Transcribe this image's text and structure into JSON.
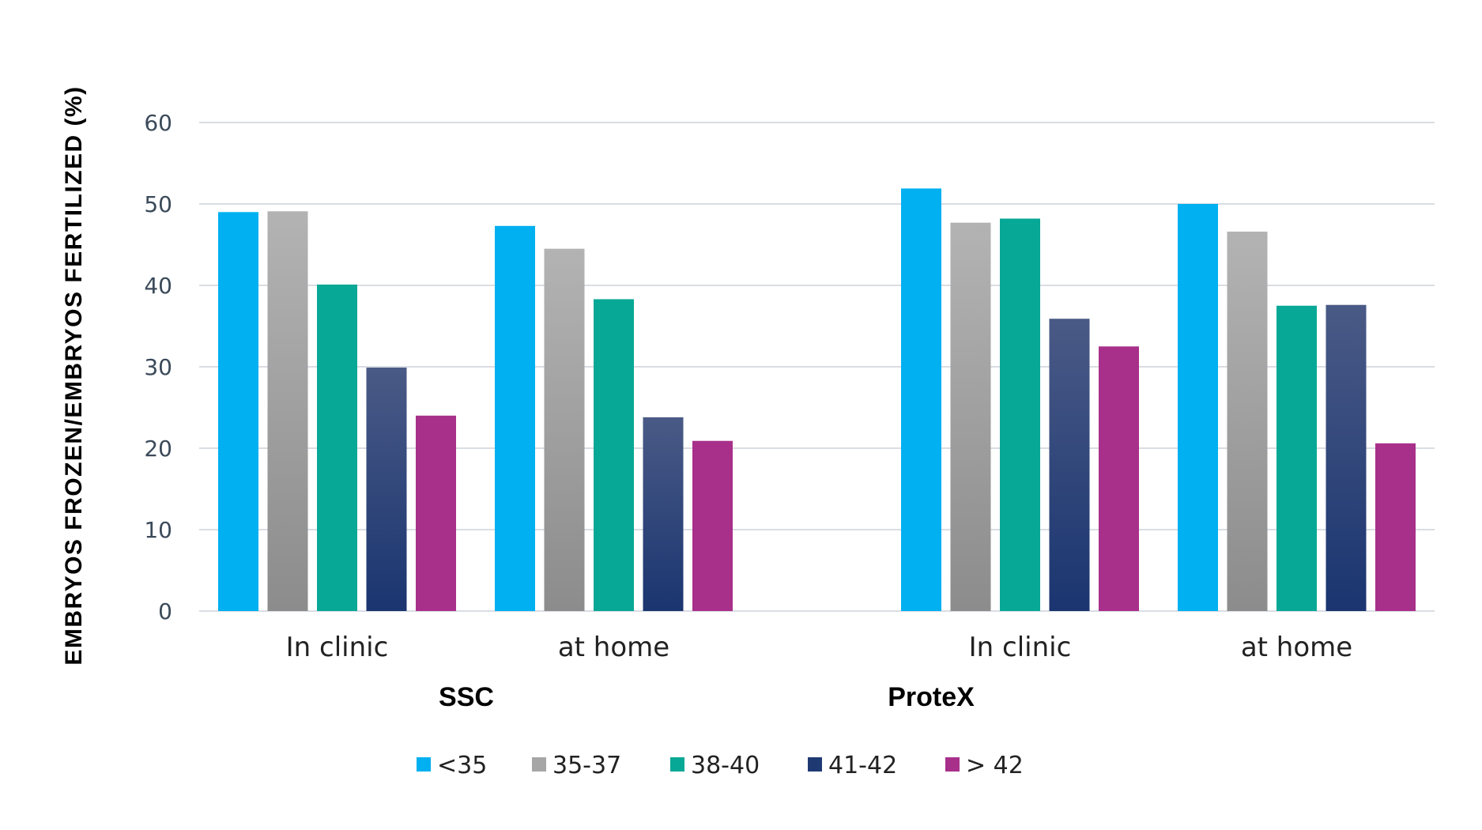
{
  "chart_data": {
    "type": "bar",
    "ylabel": "EMBRYOS FROZEN/EMBRYOS FERTILIZED (%)",
    "ylim": [
      0,
      60
    ],
    "yticks": [
      "0",
      "10",
      "20",
      "30",
      "40",
      "50",
      "60"
    ],
    "grid": true,
    "legend_position": "bottom",
    "groups": [
      {
        "name": "SSC",
        "categories": [
          "In clinic",
          "at home"
        ]
      },
      {
        "name": "ProteX",
        "categories": [
          "In clinic",
          "at home"
        ]
      }
    ],
    "categories": [
      "In clinic",
      "at home",
      "In clinic",
      "at home"
    ],
    "series": [
      {
        "name": "<35",
        "color": "#00b0f0",
        "values": [
          49.0,
          47.3,
          51.9,
          50.0
        ]
      },
      {
        "name": "35-37",
        "color": "#a6a6a6",
        "values": [
          49.1,
          44.5,
          47.7,
          46.6
        ]
      },
      {
        "name": "38-40",
        "color": "#08a896",
        "values": [
          40.1,
          38.3,
          48.2,
          37.5
        ]
      },
      {
        "name": "41-42",
        "color": "#1f3a73",
        "values": [
          29.9,
          23.8,
          35.9,
          37.6
        ]
      },
      {
        "name": "> 42",
        "color": "#a8308a",
        "values": [
          24.0,
          20.9,
          32.5,
          20.6
        ]
      }
    ]
  }
}
